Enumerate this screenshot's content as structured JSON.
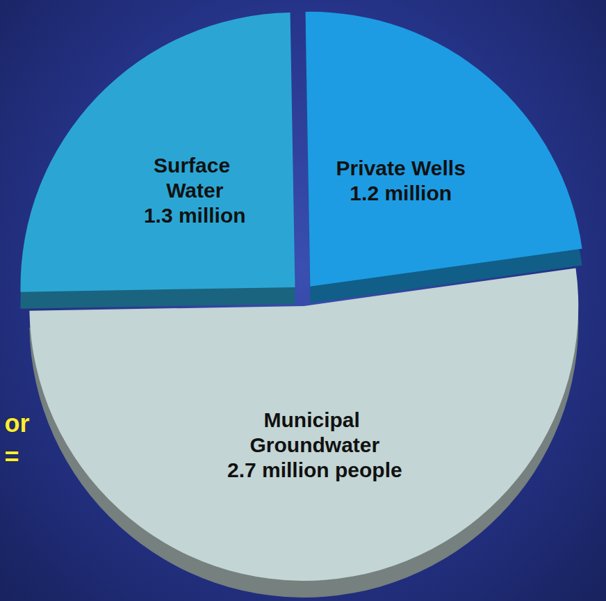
{
  "chart_data": {
    "type": "pie",
    "categories": [
      "Surface Water",
      "Private Wells",
      "Municipal Groundwater"
    ],
    "values": [
      1.3,
      1.2,
      2.7
    ],
    "value_labels": [
      "1.3 million",
      "1.2 million",
      "2.7 million people"
    ],
    "colors": [
      "#2ba6d4",
      "#1d9ce3",
      "#c3d5d4"
    ],
    "data_labels": true,
    "annotations": [
      "or",
      "="
    ]
  }
}
